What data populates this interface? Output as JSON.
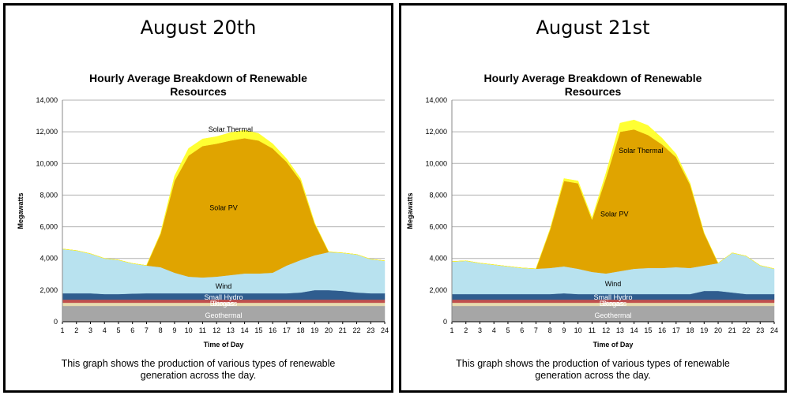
{
  "panels": [
    {
      "date_title": "August 20th"
    },
    {
      "date_title": "August 21st"
    }
  ],
  "chart_title_line1": "Hourly Average Breakdown of Renewable",
  "chart_title_line2": "Resources",
  "caption_line1": "This graph shows the production of various types of renewable",
  "caption_line2": "generation across the day.",
  "colors": {
    "geothermal": "#a6a6a6",
    "biomass": "#e8dcae",
    "biogas": "#c0504d",
    "small_hydro": "#2f5d8f",
    "wind": "#b8e2ef",
    "solar_pv": "#e0a400",
    "solar_thermal": "#ffff33",
    "grid": "#b0b0b0"
  },
  "chart_data": [
    {
      "type": "area",
      "title": "Hourly Average Breakdown of Renewable Resources",
      "xlabel": "Time of Day",
      "ylabel": "Megawatts",
      "x": [
        1,
        2,
        3,
        4,
        5,
        6,
        7,
        8,
        9,
        10,
        11,
        12,
        13,
        14,
        15,
        16,
        17,
        18,
        19,
        20,
        21,
        22,
        23,
        24
      ],
      "ylim": [
        0,
        14000
      ],
      "yticks": [
        "0",
        "2,000",
        "4,000",
        "6,000",
        "8,000",
        "10,000",
        "12,000",
        "14,000"
      ],
      "grid": true,
      "stacked": true,
      "series": [
        {
          "name": "Geothermal",
          "key": "geothermal",
          "values": [
            1000,
            1000,
            1000,
            1000,
            1000,
            1000,
            1000,
            1000,
            1000,
            1000,
            1000,
            1000,
            1000,
            1000,
            1000,
            1000,
            1000,
            1000,
            1000,
            1000,
            1000,
            1000,
            1000,
            1000
          ]
        },
        {
          "name": "Biomass",
          "key": "biomass",
          "values": [
            200,
            200,
            200,
            200,
            200,
            200,
            200,
            200,
            200,
            200,
            200,
            200,
            200,
            200,
            200,
            200,
            200,
            200,
            200,
            200,
            200,
            200,
            200,
            200
          ]
        },
        {
          "name": "Biogas",
          "key": "biogas",
          "values": [
            200,
            200,
            200,
            200,
            200,
            200,
            200,
            200,
            200,
            200,
            200,
            200,
            200,
            200,
            200,
            200,
            200,
            200,
            200,
            200,
            200,
            200,
            200,
            200
          ]
        },
        {
          "name": "Small Hydro",
          "key": "small_hydro",
          "values": [
            400,
            400,
            400,
            350,
            350,
            380,
            400,
            400,
            400,
            400,
            400,
            400,
            400,
            400,
            400,
            400,
            400,
            450,
            600,
            600,
            550,
            450,
            400,
            400
          ]
        },
        {
          "name": "Wind",
          "key": "wind",
          "values": [
            2800,
            2700,
            2500,
            2250,
            2150,
            1900,
            1750,
            1650,
            1300,
            1050,
            1000,
            1050,
            1150,
            1250,
            1250,
            1300,
            1750,
            2050,
            2200,
            2400,
            2400,
            2400,
            2150,
            2050
          ]
        },
        {
          "name": "Solar PV",
          "key": "solar_pv",
          "values": [
            0,
            0,
            0,
            0,
            0,
            0,
            0,
            2100,
            5800,
            7650,
            8300,
            8400,
            8500,
            8550,
            8400,
            7850,
            6550,
            5000,
            2000,
            20,
            0,
            0,
            0,
            0
          ]
        },
        {
          "name": "Solar Thermal",
          "key": "solar_thermal",
          "values": [
            0,
            0,
            0,
            0,
            0,
            0,
            0,
            50,
            300,
            450,
            450,
            450,
            500,
            500,
            450,
            300,
            200,
            150,
            50,
            0,
            0,
            0,
            0,
            0
          ]
        }
      ],
      "layer_labels": [
        {
          "text": "Solar Thermal",
          "key": "solar_thermal",
          "x": 13,
          "y": 12150
        },
        {
          "text": "Solar PV",
          "key": "solar_pv",
          "x": 12.5,
          "y": 7200
        },
        {
          "text": "Wind",
          "key": "wind",
          "x": 12.5,
          "y": 2250
        },
        {
          "text": "Small Hydro",
          "key": "small_hydro",
          "x": 12.5,
          "y": 1550
        },
        {
          "text": "Biogas",
          "key": "biogas",
          "x": 12.5,
          "y": 1150
        },
        {
          "text": "Biomass",
          "key": "biomass",
          "x": 12.5,
          "y": 1150
        },
        {
          "text": "Geothermal",
          "key": "geothermal",
          "x": 12.5,
          "y": 400
        }
      ]
    },
    {
      "type": "area",
      "title": "Hourly Average Breakdown of Renewable Resources",
      "xlabel": "Time of Day",
      "ylabel": "Megawatts",
      "x": [
        1,
        2,
        3,
        4,
        5,
        6,
        7,
        8,
        9,
        10,
        11,
        12,
        13,
        14,
        15,
        16,
        17,
        18,
        19,
        20,
        21,
        22,
        23,
        24
      ],
      "ylim": [
        0,
        14000
      ],
      "yticks": [
        "0",
        "2,000",
        "4,000",
        "6,000",
        "8,000",
        "10,000",
        "12,000",
        "14,000"
      ],
      "grid": true,
      "stacked": true,
      "series": [
        {
          "name": "Geothermal",
          "key": "geothermal",
          "values": [
            1000,
            1000,
            1000,
            1000,
            1000,
            1000,
            1000,
            1000,
            1000,
            1000,
            1000,
            1000,
            1000,
            1000,
            1000,
            1000,
            1000,
            1000,
            1000,
            1000,
            1000,
            1000,
            1000,
            1000
          ]
        },
        {
          "name": "Biomass",
          "key": "biomass",
          "values": [
            200,
            200,
            200,
            200,
            200,
            200,
            200,
            200,
            200,
            200,
            200,
            200,
            200,
            200,
            200,
            200,
            200,
            200,
            200,
            200,
            200,
            200,
            200,
            200
          ]
        },
        {
          "name": "Biogas",
          "key": "biogas",
          "values": [
            200,
            200,
            200,
            200,
            200,
            200,
            200,
            200,
            200,
            200,
            200,
            200,
            200,
            200,
            200,
            200,
            200,
            200,
            200,
            200,
            200,
            200,
            200,
            200
          ]
        },
        {
          "name": "Small Hydro",
          "key": "small_hydro",
          "values": [
            350,
            350,
            350,
            350,
            350,
            350,
            350,
            350,
            400,
            350,
            350,
            350,
            350,
            350,
            350,
            350,
            350,
            350,
            550,
            550,
            450,
            350,
            350,
            350
          ]
        },
        {
          "name": "Wind",
          "key": "wind",
          "values": [
            2050,
            2100,
            1950,
            1850,
            1750,
            1650,
            1600,
            1650,
            1700,
            1600,
            1400,
            1300,
            1450,
            1600,
            1650,
            1650,
            1700,
            1650,
            1600,
            1750,
            2500,
            2400,
            1800,
            1600
          ]
        },
        {
          "name": "Solar PV",
          "key": "solar_pv",
          "values": [
            0,
            0,
            0,
            0,
            0,
            0,
            0,
            2400,
            5400,
            5400,
            3300,
            6050,
            8800,
            8800,
            8400,
            7800,
            6950,
            5250,
            2050,
            0,
            0,
            0,
            0,
            0
          ]
        },
        {
          "name": "Solar Thermal",
          "key": "solar_thermal",
          "values": [
            0,
            0,
            0,
            0,
            0,
            0,
            0,
            50,
            150,
            150,
            100,
            300,
            550,
            600,
            600,
            400,
            200,
            100,
            0,
            0,
            0,
            0,
            0,
            0
          ]
        }
      ],
      "layer_labels": [
        {
          "text": "Solar Thermal",
          "key": "solar_thermal",
          "x": 14.5,
          "y": 10800
        },
        {
          "text": "Solar PV",
          "key": "solar_pv",
          "x": 12.6,
          "y": 6800
        },
        {
          "text": "Wind",
          "key": "wind",
          "x": 12.5,
          "y": 2400
        },
        {
          "text": "Small Hydro",
          "key": "small_hydro",
          "x": 12.5,
          "y": 1550
        },
        {
          "text": "Biogas",
          "key": "biogas",
          "x": 12.5,
          "y": 1150
        },
        {
          "text": "Biomass",
          "key": "biomass",
          "x": 12.5,
          "y": 1150
        },
        {
          "text": "Geothermal",
          "key": "geothermal",
          "x": 12.5,
          "y": 400
        }
      ]
    }
  ]
}
